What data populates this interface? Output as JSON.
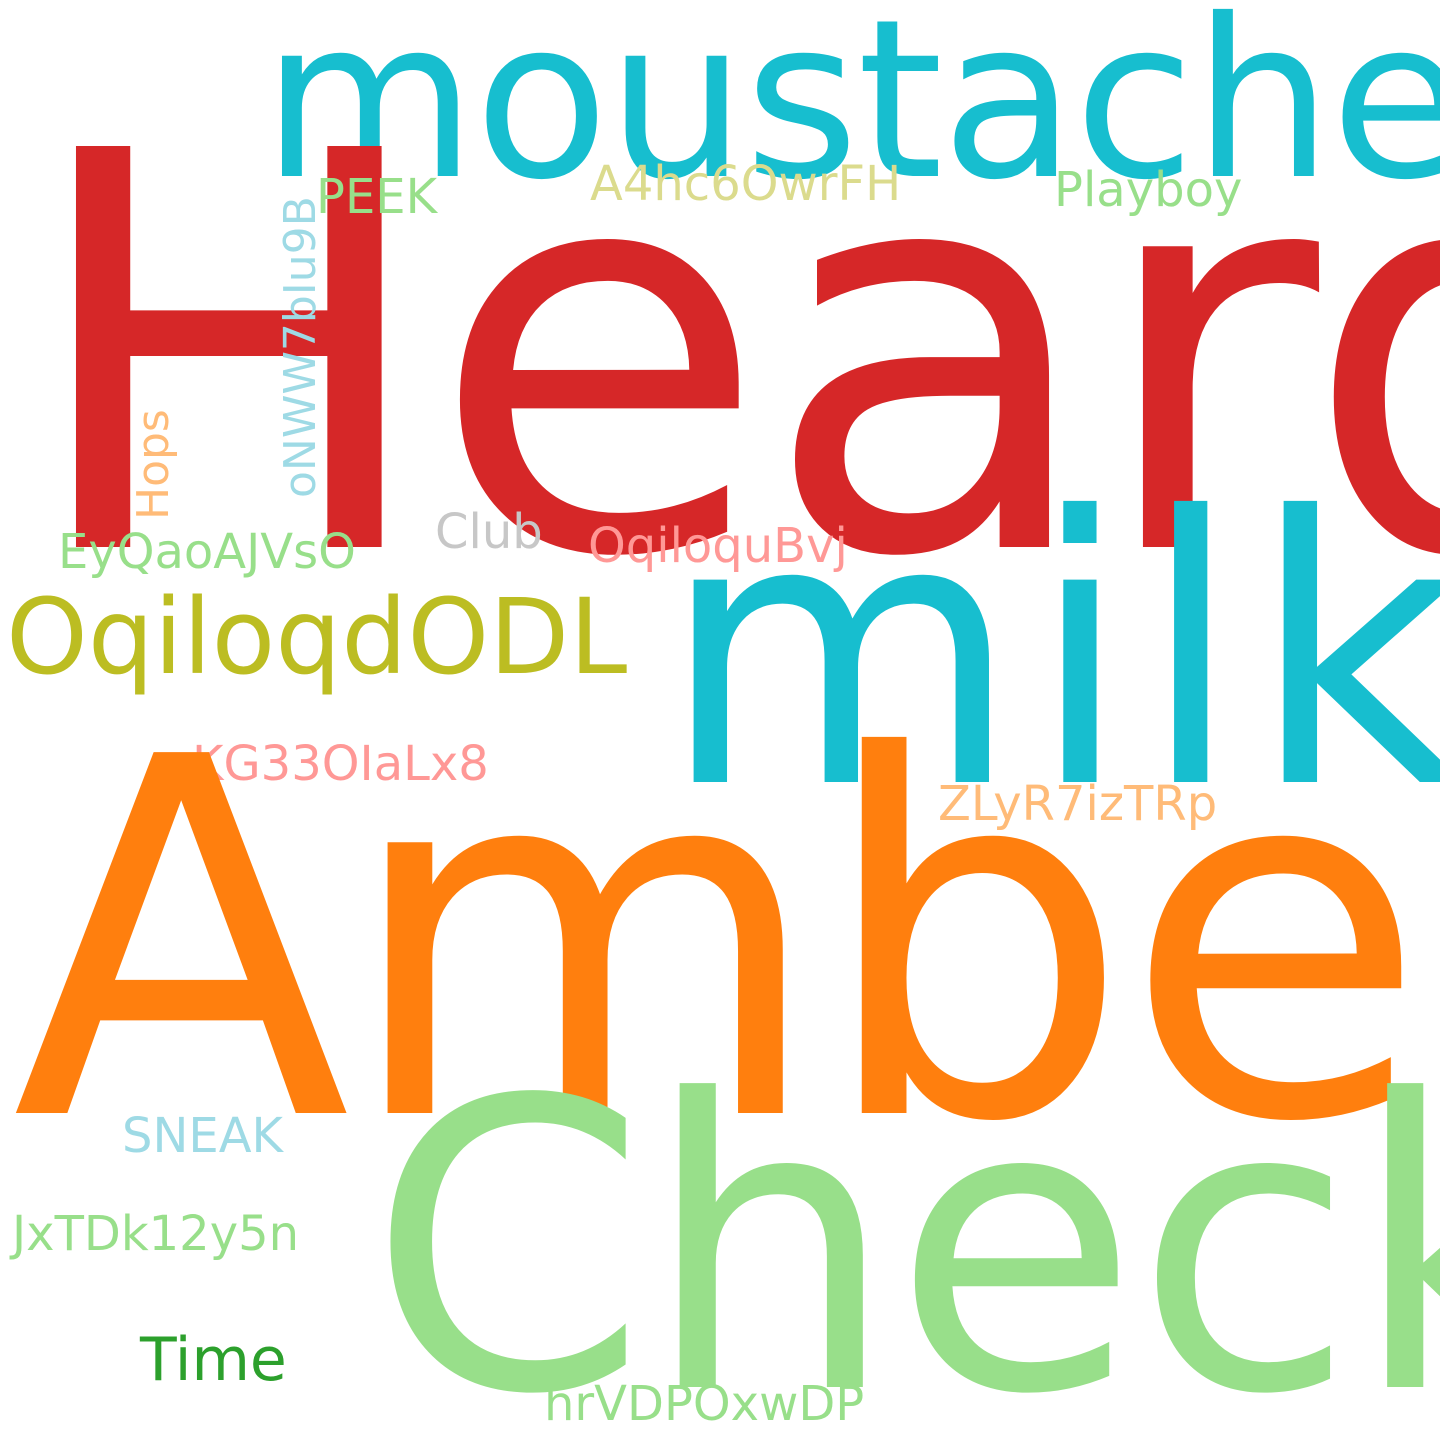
{
  "words": {
    "heard": {
      "text": "Heard",
      "color": "#d62728"
    },
    "moustache": {
      "text": "moustache",
      "color": "#17becf"
    },
    "milk": {
      "text": "milk",
      "color": "#17becf"
    },
    "amber": {
      "text": "Amber",
      "color": "#ff7f0e"
    },
    "check": {
      "text": "Check",
      "color": "#98df8a"
    },
    "oqiloqd": {
      "text": "OqiloqdODL",
      "color": "#bcbd22"
    },
    "playboy": {
      "text": "Playboy",
      "color": "#98df8a"
    },
    "a4hc": {
      "text": "A4hc6OwrFH",
      "color": "#dbdb8d"
    },
    "peek": {
      "text": "PEEK",
      "color": "#98df8a"
    },
    "onww": {
      "text": "oNWW7bIu9B",
      "color": "#9edae5"
    },
    "hops": {
      "text": "Hops",
      "color": "#ffbb78"
    },
    "eyqao": {
      "text": "EyQaoAJVsO",
      "color": "#98df8a"
    },
    "club": {
      "text": "Club",
      "color": "#c7c7c7"
    },
    "oqiloqu": {
      "text": "OqiloquBvj",
      "color": "#ff9896"
    },
    "kg33": {
      "text": "KG33OIaLx8",
      "color": "#ff9896"
    },
    "zlyr": {
      "text": "ZLyR7izTRp",
      "color": "#ffbb78"
    },
    "sneak": {
      "text": "SNEAK",
      "color": "#9edae5"
    },
    "jxtdk": {
      "text": "JxTDk12y5n",
      "color": "#98df8a"
    },
    "time": {
      "text": "Time",
      "color": "#2ca02c"
    },
    "hrvd": {
      "text": "hrVDPOxwDP",
      "color": "#98df8a"
    }
  }
}
